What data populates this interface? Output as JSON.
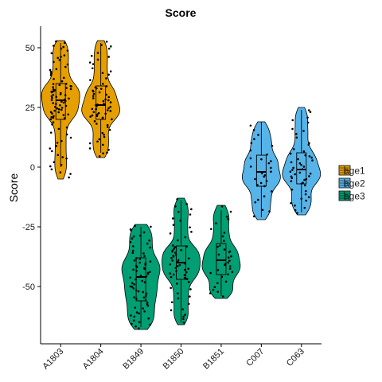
{
  "chart_data": {
    "type": "violin",
    "title": "Score",
    "xlabel": "",
    "ylabel": "Score",
    "ylim": [
      -74,
      59
    ],
    "yticks": [
      50,
      25,
      0,
      -25,
      -50
    ],
    "ytick_labels": [
      "50",
      "25",
      "0",
      "-25",
      "-50"
    ],
    "grid": false,
    "legend_position": "right",
    "groups": [
      {
        "name": "age1",
        "color": "#E69F00"
      },
      {
        "name": "age2",
        "color": "#56B4E9"
      },
      {
        "name": "age3",
        "color": "#009E73"
      }
    ],
    "categories": [
      {
        "label": "A1803",
        "group": "age1",
        "min": -5,
        "max": 53,
        "q1": 20,
        "median": 28,
        "q3": 35,
        "whisker_low": 0,
        "whisker_high": 52,
        "n": 90
      },
      {
        "label": "A1804",
        "group": "age1",
        "min": 4,
        "max": 53,
        "q1": 20,
        "median": 26,
        "q3": 34,
        "whisker_low": 6,
        "whisker_high": 52,
        "n": 70
      },
      {
        "label": "B1849",
        "group": "age3",
        "min": -68,
        "max": -24,
        "q1": -56,
        "median": -46,
        "q3": -38,
        "whisker_low": -67,
        "whisker_high": -25,
        "n": 70
      },
      {
        "label": "B1850",
        "group": "age3",
        "min": -66,
        "max": -13,
        "q1": -47,
        "median": -40,
        "q3": -33,
        "whisker_low": -65,
        "whisker_high": -14,
        "n": 60
      },
      {
        "label": "B1851",
        "group": "age3",
        "min": -55,
        "max": -16,
        "q1": -45,
        "median": -39,
        "q3": -32,
        "whisker_low": -54,
        "whisker_high": -18,
        "n": 35
      },
      {
        "label": "C007",
        "group": "age2",
        "min": -22,
        "max": 19,
        "q1": -8,
        "median": -2,
        "q3": 5,
        "whisker_low": -21,
        "whisker_high": 19,
        "n": 30
      },
      {
        "label": "C063",
        "group": "age2",
        "min": -20,
        "max": 25,
        "q1": -7,
        "median": -1,
        "q3": 6,
        "whisker_low": -19,
        "whisker_high": 24,
        "n": 50
      }
    ]
  }
}
